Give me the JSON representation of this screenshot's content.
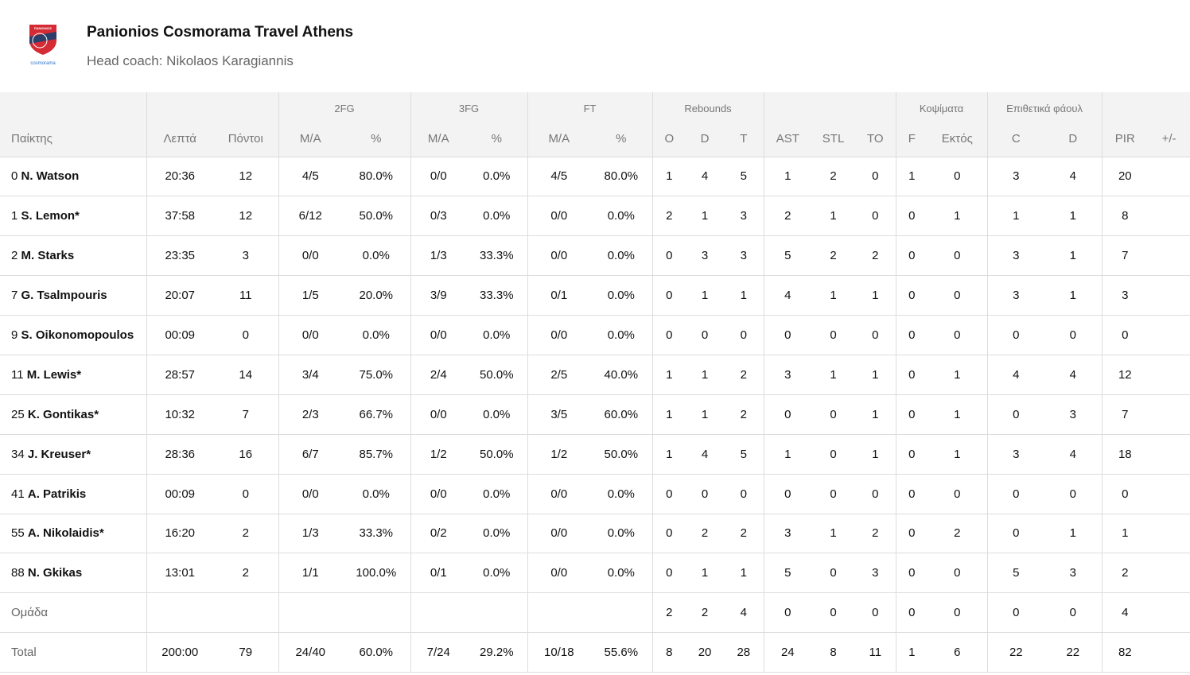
{
  "header": {
    "team": "Panionios Cosmorama Travel Athens",
    "coach": "Head coach: Nikolaos Karagiannis",
    "logo_text": "ΠΑΝΙΩΝΙΟΣ Κ.Α.Ε. Γ.Σ.Σ. 1890 cosmorama"
  },
  "groups": {
    "fg2": "2FG",
    "fg3": "3FG",
    "ft": "FT",
    "reb": "Rebounds",
    "blk": "Κοψίματα",
    "fouls": "Επιθετικά φάουλ"
  },
  "cols": [
    "Παίκτης",
    "Λεπτά",
    "Πόντοι",
    "M/A",
    "%",
    "M/A",
    "%",
    "M/A",
    "%",
    "O",
    "D",
    "T",
    "AST",
    "STL",
    "TO",
    "F",
    "Εκτός",
    "C",
    "D",
    "PIR",
    "+/-"
  ],
  "players": [
    {
      "no": "0",
      "name": "N. Watson",
      "s": [
        "20:36",
        "12",
        "4/5",
        "80.0%",
        "0/0",
        "0.0%",
        "4/5",
        "80.0%",
        "1",
        "4",
        "5",
        "1",
        "2",
        "0",
        "1",
        "0",
        "3",
        "4",
        "20",
        ""
      ]
    },
    {
      "no": "1",
      "name": "S. Lemon*",
      "s": [
        "37:58",
        "12",
        "6/12",
        "50.0%",
        "0/3",
        "0.0%",
        "0/0",
        "0.0%",
        "2",
        "1",
        "3",
        "2",
        "1",
        "0",
        "0",
        "1",
        "1",
        "1",
        "8",
        ""
      ]
    },
    {
      "no": "2",
      "name": "M. Starks",
      "s": [
        "23:35",
        "3",
        "0/0",
        "0.0%",
        "1/3",
        "33.3%",
        "0/0",
        "0.0%",
        "0",
        "3",
        "3",
        "5",
        "2",
        "2",
        "0",
        "0",
        "3",
        "1",
        "7",
        ""
      ]
    },
    {
      "no": "7",
      "name": "G. Tsalmpouris",
      "s": [
        "20:07",
        "11",
        "1/5",
        "20.0%",
        "3/9",
        "33.3%",
        "0/1",
        "0.0%",
        "0",
        "1",
        "1",
        "4",
        "1",
        "1",
        "0",
        "0",
        "3",
        "1",
        "3",
        ""
      ]
    },
    {
      "no": "9",
      "name": "S. Oikonomopoulos",
      "s": [
        "00:09",
        "0",
        "0/0",
        "0.0%",
        "0/0",
        "0.0%",
        "0/0",
        "0.0%",
        "0",
        "0",
        "0",
        "0",
        "0",
        "0",
        "0",
        "0",
        "0",
        "0",
        "0",
        ""
      ]
    },
    {
      "no": "11",
      "name": "M. Lewis*",
      "s": [
        "28:57",
        "14",
        "3/4",
        "75.0%",
        "2/4",
        "50.0%",
        "2/5",
        "40.0%",
        "1",
        "1",
        "2",
        "3",
        "1",
        "1",
        "0",
        "1",
        "4",
        "4",
        "12",
        ""
      ]
    },
    {
      "no": "25",
      "name": "K. Gontikas*",
      "s": [
        "10:32",
        "7",
        "2/3",
        "66.7%",
        "0/0",
        "0.0%",
        "3/5",
        "60.0%",
        "1",
        "1",
        "2",
        "0",
        "0",
        "1",
        "0",
        "1",
        "0",
        "3",
        "7",
        ""
      ]
    },
    {
      "no": "34",
      "name": "J. Kreuser*",
      "s": [
        "28:36",
        "16",
        "6/7",
        "85.7%",
        "1/2",
        "50.0%",
        "1/2",
        "50.0%",
        "1",
        "4",
        "5",
        "1",
        "0",
        "1",
        "0",
        "1",
        "3",
        "4",
        "18",
        ""
      ]
    },
    {
      "no": "41",
      "name": "A. Patrikis",
      "s": [
        "00:09",
        "0",
        "0/0",
        "0.0%",
        "0/0",
        "0.0%",
        "0/0",
        "0.0%",
        "0",
        "0",
        "0",
        "0",
        "0",
        "0",
        "0",
        "0",
        "0",
        "0",
        "0",
        ""
      ]
    },
    {
      "no": "55",
      "name": "A. Nikolaidis*",
      "s": [
        "16:20",
        "2",
        "1/3",
        "33.3%",
        "0/2",
        "0.0%",
        "0/0",
        "0.0%",
        "0",
        "2",
        "2",
        "3",
        "1",
        "2",
        "0",
        "2",
        "0",
        "1",
        "1",
        ""
      ]
    },
    {
      "no": "88",
      "name": "N. Gkikas",
      "s": [
        "13:01",
        "2",
        "1/1",
        "100.0%",
        "0/1",
        "0.0%",
        "0/0",
        "0.0%",
        "0",
        "1",
        "1",
        "5",
        "0",
        "3",
        "0",
        "0",
        "5",
        "3",
        "2",
        ""
      ]
    }
  ],
  "team_row": {
    "label": "Ομάδα",
    "s": [
      "",
      "",
      "",
      "",
      "",
      "",
      "",
      "",
      "2",
      "2",
      "4",
      "0",
      "0",
      "0",
      "0",
      "0",
      "0",
      "0",
      "4",
      ""
    ]
  },
  "total_row": {
    "label": "Total",
    "s": [
      "200:00",
      "79",
      "24/40",
      "60.0%",
      "7/24",
      "29.2%",
      "10/18",
      "55.6%",
      "8",
      "20",
      "28",
      "24",
      "8",
      "11",
      "1",
      "6",
      "22",
      "22",
      "82",
      ""
    ]
  }
}
